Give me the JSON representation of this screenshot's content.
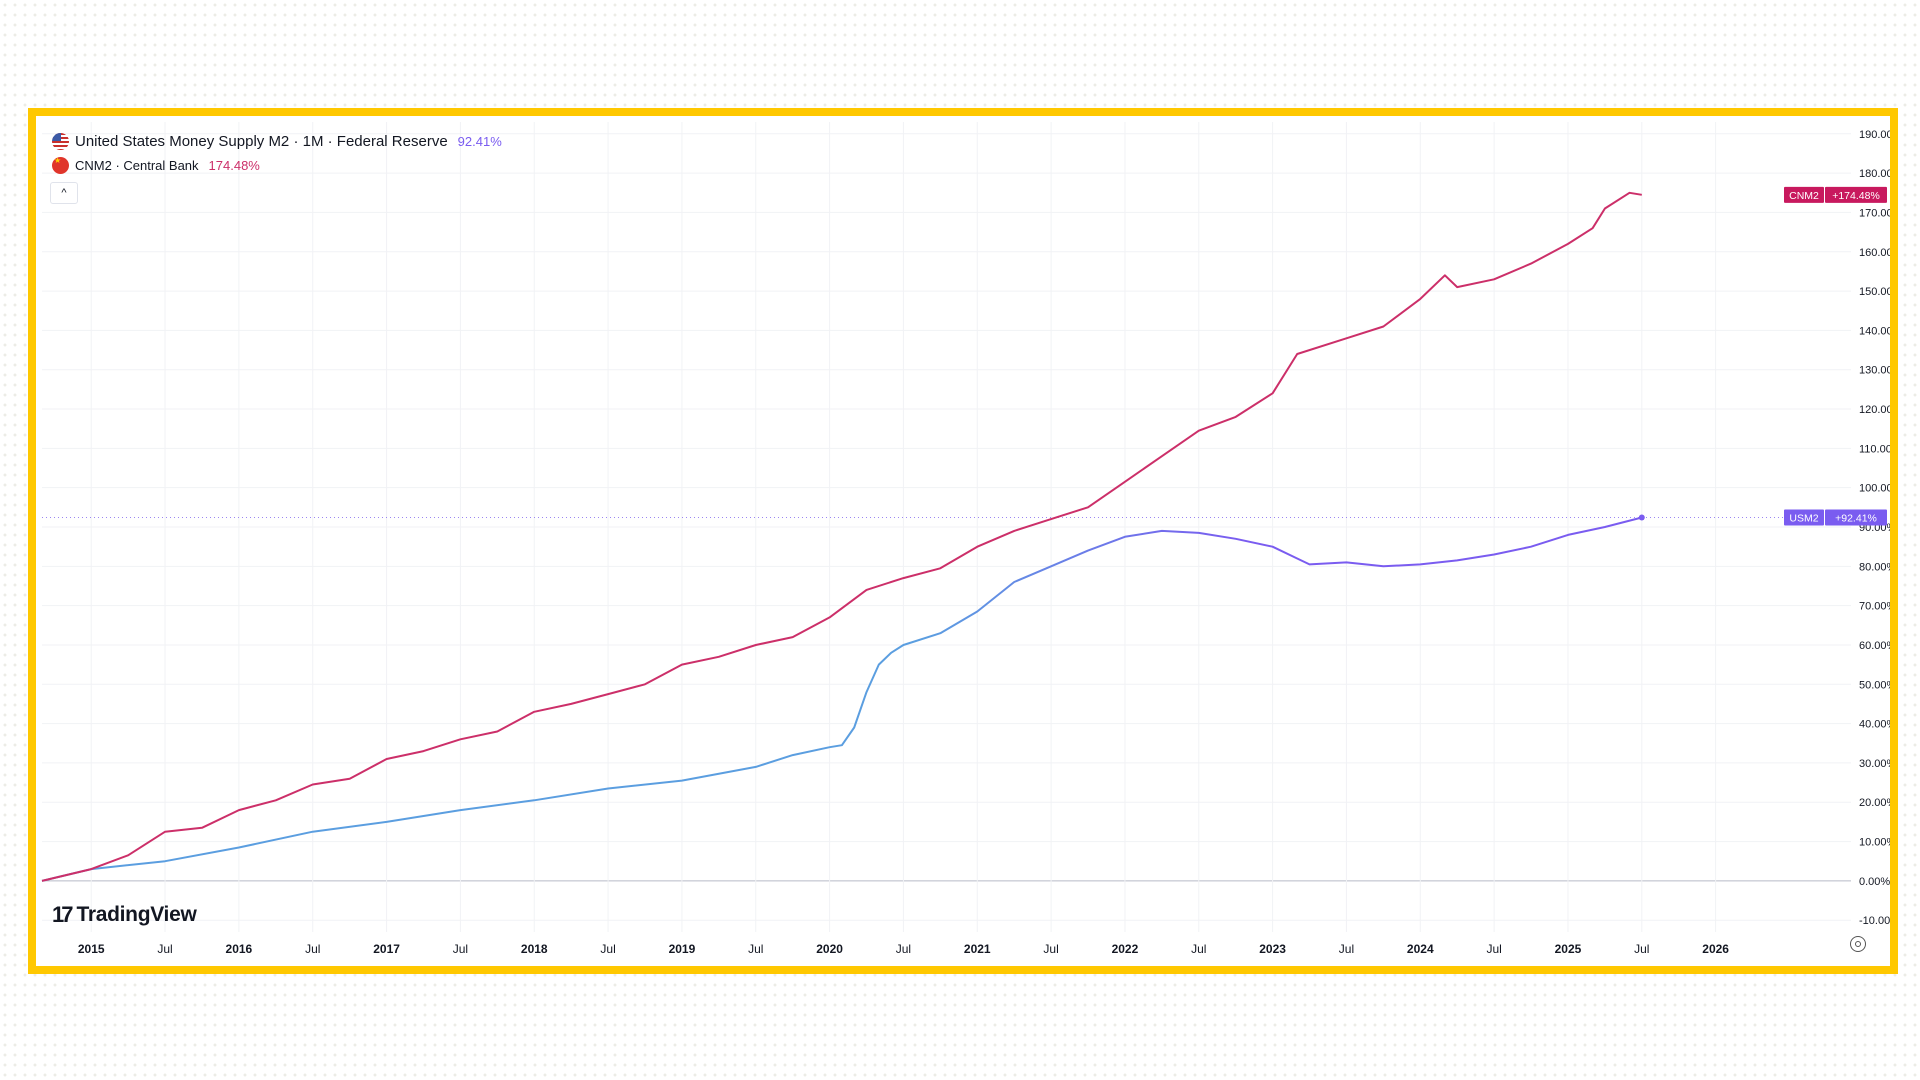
{
  "legend": {
    "us": {
      "title": "United States Money Supply M2 · 1M · Federal Reserve",
      "value": "92.41%"
    },
    "cn": {
      "title": "CNM2 · Central Bank",
      "value": "174.48%"
    }
  },
  "collapse_glyph": "^",
  "logo_text": "TradingView",
  "logo_mark": "17",
  "colors": {
    "us": "#5b9ee0",
    "us_end": "#7a5cf0",
    "cn": "#cc2f69",
    "frame": "#ffc800"
  },
  "tags": [
    {
      "name": "CNM2",
      "value": "+174.48%",
      "color": "#c8195e",
      "y": 174.48
    },
    {
      "name": "USM2",
      "value": "+92.41%",
      "color": "#7a5cf0",
      "y": 92.41
    }
  ],
  "chart_data": {
    "type": "line",
    "y_axis": {
      "min": -13,
      "max": 193,
      "ticks": [
        190,
        180,
        170,
        160,
        150,
        140,
        130,
        120,
        110,
        100,
        90,
        80,
        70,
        60,
        50,
        40,
        30,
        20,
        10,
        0,
        -10
      ],
      "unit": "%"
    },
    "x_axis": {
      "start": "2014-09",
      "end": "2026-12",
      "ticks": [
        {
          "label": "2015",
          "t": "2015-01",
          "bold": true
        },
        {
          "label": "Jul",
          "t": "2015-07"
        },
        {
          "label": "2016",
          "t": "2016-01",
          "bold": true
        },
        {
          "label": "Jul",
          "t": "2016-07"
        },
        {
          "label": "2017",
          "t": "2017-01",
          "bold": true
        },
        {
          "label": "Jul",
          "t": "2017-07"
        },
        {
          "label": "2018",
          "t": "2018-01",
          "bold": true
        },
        {
          "label": "Jul",
          "t": "2018-07"
        },
        {
          "label": "2019",
          "t": "2019-01",
          "bold": true
        },
        {
          "label": "Jul",
          "t": "2019-07"
        },
        {
          "label": "2020",
          "t": "2020-01",
          "bold": true
        },
        {
          "label": "Jul",
          "t": "2020-07"
        },
        {
          "label": "2021",
          "t": "2021-01",
          "bold": true
        },
        {
          "label": "Jul",
          "t": "2021-07"
        },
        {
          "label": "2022",
          "t": "2022-01",
          "bold": true
        },
        {
          "label": "Jul",
          "t": "2022-07"
        },
        {
          "label": "2023",
          "t": "2023-01",
          "bold": true
        },
        {
          "label": "Jul",
          "t": "2023-07"
        },
        {
          "label": "2024",
          "t": "2024-01",
          "bold": true
        },
        {
          "label": "Jul",
          "t": "2024-07"
        },
        {
          "label": "2025",
          "t": "2025-01",
          "bold": true
        },
        {
          "label": "Jul",
          "t": "2025-07"
        },
        {
          "label": "2026",
          "t": "2026-01",
          "bold": true
        }
      ]
    },
    "grid": true,
    "series": [
      {
        "name": "United States Money Supply M2",
        "points": [
          [
            "2014-09",
            0
          ],
          [
            "2015-01",
            3
          ],
          [
            "2015-07",
            5
          ],
          [
            "2016-01",
            8.5
          ],
          [
            "2016-07",
            12.5
          ],
          [
            "2017-01",
            15
          ],
          [
            "2017-07",
            18
          ],
          [
            "2018-01",
            20.5
          ],
          [
            "2018-07",
            23.5
          ],
          [
            "2019-01",
            25.5
          ],
          [
            "2019-07",
            29
          ],
          [
            "2019-10",
            32
          ],
          [
            "2020-01",
            34
          ],
          [
            "2020-02",
            34.5
          ],
          [
            "2020-03",
            39
          ],
          [
            "2020-04",
            48
          ],
          [
            "2020-05",
            55
          ],
          [
            "2020-06",
            58
          ],
          [
            "2020-07",
            60
          ],
          [
            "2020-10",
            63
          ],
          [
            "2021-01",
            68.5
          ],
          [
            "2021-04",
            76
          ],
          [
            "2021-07",
            80
          ],
          [
            "2021-10",
            84
          ],
          [
            "2022-01",
            87.5
          ],
          [
            "2022-04",
            89
          ],
          [
            "2022-07",
            88.5
          ],
          [
            "2022-10",
            87
          ],
          [
            "2023-01",
            85
          ],
          [
            "2023-03",
            82
          ],
          [
            "2023-04",
            80.5
          ],
          [
            "2023-07",
            81
          ],
          [
            "2023-10",
            80
          ],
          [
            "2024-01",
            80.5
          ],
          [
            "2024-04",
            81.5
          ],
          [
            "2024-07",
            83
          ],
          [
            "2024-10",
            85
          ],
          [
            "2025-01",
            88
          ],
          [
            "2025-04",
            90
          ],
          [
            "2025-07",
            92.41
          ]
        ]
      },
      {
        "name": "CNM2",
        "points": [
          [
            "2014-09",
            0
          ],
          [
            "2015-01",
            3
          ],
          [
            "2015-04",
            6.5
          ],
          [
            "2015-07",
            12.5
          ],
          [
            "2015-10",
            13.5
          ],
          [
            "2016-01",
            18
          ],
          [
            "2016-04",
            20.5
          ],
          [
            "2016-07",
            24.5
          ],
          [
            "2016-10",
            26
          ],
          [
            "2017-01",
            31
          ],
          [
            "2017-04",
            33
          ],
          [
            "2017-07",
            36
          ],
          [
            "2017-10",
            38
          ],
          [
            "2018-01",
            43
          ],
          [
            "2018-04",
            45
          ],
          [
            "2018-07",
            47.5
          ],
          [
            "2018-10",
            50
          ],
          [
            "2019-01",
            55
          ],
          [
            "2019-04",
            57
          ],
          [
            "2019-07",
            60
          ],
          [
            "2019-10",
            62
          ],
          [
            "2020-01",
            67
          ],
          [
            "2020-04",
            74
          ],
          [
            "2020-07",
            77
          ],
          [
            "2020-10",
            79.5
          ],
          [
            "2021-01",
            85
          ],
          [
            "2021-04",
            89
          ],
          [
            "2021-07",
            92
          ],
          [
            "2021-10",
            95
          ],
          [
            "2022-01",
            101.5
          ],
          [
            "2022-04",
            108
          ],
          [
            "2022-07",
            114.5
          ],
          [
            "2022-10",
            118
          ],
          [
            "2023-01",
            124
          ],
          [
            "2023-03",
            134
          ],
          [
            "2023-07",
            138
          ],
          [
            "2023-10",
            141
          ],
          [
            "2024-01",
            148
          ],
          [
            "2024-03",
            154
          ],
          [
            "2024-04",
            151
          ],
          [
            "2024-07",
            153
          ],
          [
            "2024-10",
            157
          ],
          [
            "2025-01",
            162
          ],
          [
            "2025-03",
            166
          ],
          [
            "2025-04",
            171
          ],
          [
            "2025-06",
            175
          ],
          [
            "2025-07",
            174.48
          ]
        ]
      }
    ]
  }
}
